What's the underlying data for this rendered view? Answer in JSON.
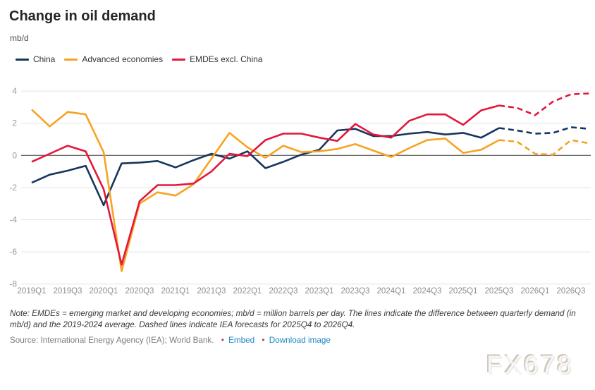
{
  "header": {
    "title": "Change in oil demand",
    "unit_label": "mb/d"
  },
  "legend": [
    {
      "label": "China",
      "color": "#17365d"
    },
    {
      "label": "Advanced economies",
      "color": "#f7a321"
    },
    {
      "label": "EMDEs excl. China",
      "color": "#e3173c"
    }
  ],
  "chart_data": {
    "type": "line",
    "title": "Change in oil demand",
    "ylabel": "mb/d",
    "ylim": [
      -8,
      4
    ],
    "yticks": [
      4,
      2,
      0,
      -2,
      -4,
      -6,
      -8
    ],
    "grid": true,
    "legend_position": "top-left",
    "categories": [
      "2019Q1",
      "2019Q2",
      "2019Q3",
      "2019Q4",
      "2020Q1",
      "2020Q2",
      "2020Q3",
      "2020Q4",
      "2021Q1",
      "2021Q2",
      "2021Q3",
      "2021Q4",
      "2022Q1",
      "2022Q2",
      "2022Q3",
      "2022Q4",
      "2023Q1",
      "2023Q2",
      "2023Q3",
      "2023Q4",
      "2024Q1",
      "2024Q2",
      "2024Q3",
      "2024Q4",
      "2025Q1",
      "2025Q2",
      "2025Q3",
      "2025Q4",
      "2026Q1",
      "2026Q2",
      "2026Q3",
      "2026Q4"
    ],
    "x_tick_labels": [
      "2019Q1",
      "2019Q3",
      "2020Q1",
      "2020Q3",
      "2021Q1",
      "2021Q3",
      "2022Q1",
      "2022Q3",
      "2023Q1",
      "2023Q3",
      "2024Q1",
      "2024Q3",
      "2025Q1",
      "2025Q3",
      "2026Q1",
      "2026Q3"
    ],
    "forecast_start_index": 27,
    "forecast_range_label": "2025Q4 to 2026Q4",
    "series": [
      {
        "name": "China",
        "color": "#17365d",
        "values": [
          -1.7,
          -1.2,
          -0.95,
          -0.65,
          -3.1,
          -0.5,
          -0.45,
          -0.35,
          -0.75,
          -0.3,
          0.1,
          -0.2,
          0.25,
          -0.8,
          -0.4,
          0.05,
          0.35,
          1.55,
          1.65,
          1.2,
          1.2,
          1.35,
          1.45,
          1.3,
          1.4,
          1.1,
          1.7,
          1.55,
          1.35,
          1.4,
          1.75,
          1.65
        ]
      },
      {
        "name": "Advanced economies",
        "color": "#f7a321",
        "values": [
          2.85,
          1.8,
          2.7,
          2.55,
          0.2,
          -7.2,
          -3.0,
          -2.3,
          -2.5,
          -1.8,
          -0.2,
          1.4,
          0.5,
          -0.15,
          0.6,
          0.2,
          0.25,
          0.4,
          0.7,
          0.3,
          -0.1,
          0.45,
          0.95,
          1.05,
          0.15,
          0.35,
          0.95,
          0.85,
          0.1,
          0.05,
          0.95,
          0.75
        ]
      },
      {
        "name": "EMDEs excl. China",
        "color": "#e3173c",
        "values": [
          -0.4,
          0.1,
          0.6,
          0.25,
          -2.1,
          -6.8,
          -2.85,
          -1.85,
          -1.85,
          -1.75,
          -1.0,
          0.1,
          -0.05,
          0.95,
          1.35,
          1.35,
          1.1,
          0.9,
          1.95,
          1.3,
          1.1,
          2.15,
          2.55,
          2.55,
          1.9,
          2.8,
          3.1,
          2.95,
          2.5,
          3.35,
          3.8,
          3.85
        ]
      }
    ]
  },
  "footer": {
    "note": "Note: EMDEs = emerging market and developing economies; mb/d = million barrels per day. The lines indicate the difference between quarterly demand (in mb/d) and the 2019-2024 average. Dashed lines indicate IEA forecasts for 2025Q4 to 2026Q4.",
    "source": "Source: International Energy Agency (IEA); World Bank.",
    "bullet": "•",
    "embed_label": "Embed",
    "download_label": "Download image",
    "watermark": "FX678"
  }
}
